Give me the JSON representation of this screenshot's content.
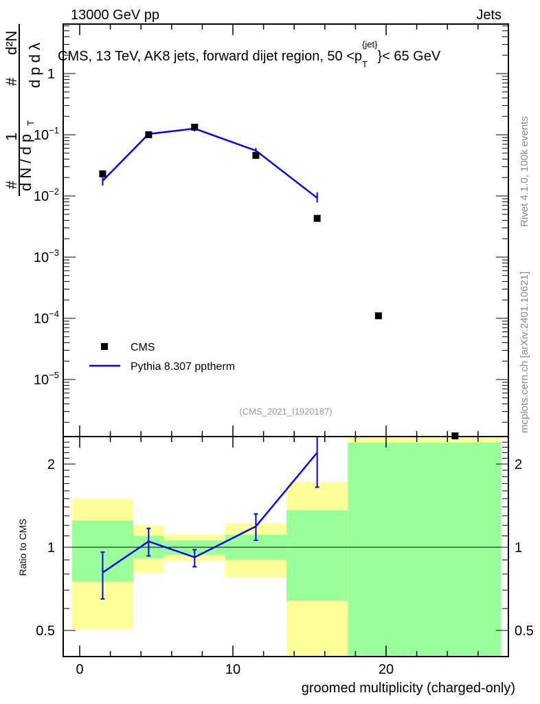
{
  "header": {
    "left": "13000 GeV pp",
    "right": "Jets"
  },
  "side": {
    "rivet": "Rivet 4.1.0,  100k events",
    "mcplots": "mcplots.cern.ch [arXiv:2401.10621]"
  },
  "ylabel": {
    "num1": "1",
    "den1": "d N / d p",
    "num2": "d²N",
    "den2": "d p   d λ",
    "hash": "#",
    "sub": "T"
  },
  "chart_data": [
    {
      "type": "scatter+line",
      "title": "CMS, 13 TeV, AK8 jets, forward dijet region, 50 <p",
      "title_sup": "{jet}",
      "title_sub": "T",
      "title_end": "}< 65 GeV",
      "watermark": "(CMS_2021_I1920187)",
      "yscale": "log",
      "ylim": [
        1.2e-06,
        6.4
      ],
      "xlim": [
        -1.1,
        28
      ],
      "yticks": [
        {
          "v": 1,
          "l": "1"
        },
        {
          "v": 0.1,
          "l": "10",
          "e": "−1"
        },
        {
          "v": 0.01,
          "l": "10",
          "e": "−2"
        },
        {
          "v": 0.001,
          "l": "10",
          "e": "−3"
        },
        {
          "v": 0.0001,
          "l": "10",
          "e": "−4"
        },
        {
          "v": 1e-05,
          "l": "10",
          "e": "−5"
        }
      ],
      "legend": {
        "position": "bottom-left",
        "entries": [
          "CMS",
          "Pythia 8.307 pptherm"
        ]
      },
      "series": [
        {
          "name": "CMS",
          "color": "#000000",
          "x": [
            1.5,
            4.5,
            7.5,
            11.5,
            15.5,
            19.5,
            24.5
          ],
          "y": [
            0.023,
            0.1,
            0.133,
            0.046,
            0.0043,
            0.00011,
            1.2e-06
          ]
        },
        {
          "name": "Pythia 8.307 pptherm",
          "color": "#0000ff",
          "x": [
            1.5,
            4.5,
            7.5,
            11.5,
            15.5
          ],
          "y": [
            0.0177,
            0.103,
            0.126,
            0.055,
            0.0093
          ],
          "err_lo": [
            0.0148,
            0.094,
            0.113,
            0.049,
            0.0078
          ],
          "err_hi": [
            0.021,
            0.112,
            0.135,
            0.061,
            0.0115
          ]
        }
      ]
    },
    {
      "type": "ratio",
      "ylabel": "Ratio to CMS",
      "xlabel": "groomed multiplicity (charged-only)",
      "yscale": "log",
      "ylim": [
        0.4,
        2.5
      ],
      "yticks": [
        {
          "v": 0.5,
          "l": "0.5"
        },
        {
          "v": 1,
          "l": "1"
        },
        {
          "v": 2,
          "l": "2"
        }
      ],
      "xticks": [
        {
          "v": 0,
          "l": "0"
        },
        {
          "v": 10,
          "l": "10"
        },
        {
          "v": 20,
          "l": "20"
        }
      ],
      "bands": [
        {
          "x0": -0.5,
          "x1": 3.5,
          "y2": [
            0.506,
            1.5
          ],
          "y1": [
            0.75,
            1.25
          ]
        },
        {
          "x0": 3.5,
          "x1": 5.5,
          "y2": [
            0.81,
            1.2
          ],
          "y1": [
            0.91,
            1.1
          ]
        },
        {
          "x0": 5.5,
          "x1": 9.5,
          "y2": [
            0.89,
            1.11
          ],
          "y1": [
            0.94,
            1.06
          ]
        },
        {
          "x0": 9.5,
          "x1": 13.5,
          "y2": [
            0.78,
            1.22
          ],
          "y1": [
            0.9,
            1.11
          ]
        },
        {
          "x0": 13.5,
          "x1": 17.5,
          "y2": [
            0.3,
            1.72
          ],
          "y1": [
            0.64,
            1.36
          ]
        },
        {
          "x0": 17.5,
          "x1": 27.5,
          "y2": [
            0.3,
            2.6
          ],
          "y1": [
            0.3,
            2.39
          ]
        }
      ],
      "band_colors": {
        "y2": "#ffff99",
        "y1": "#99ff99"
      },
      "series": {
        "x": [
          1.5,
          4.5,
          7.5,
          11.5,
          15.5
        ],
        "y": [
          0.81,
          1.05,
          0.92,
          1.19,
          2.2
        ],
        "err_lo": [
          0.65,
          0.93,
          0.85,
          1.06,
          1.65
        ],
        "err_hi": [
          0.96,
          1.17,
          0.98,
          1.32,
          2.8
        ]
      }
    }
  ]
}
